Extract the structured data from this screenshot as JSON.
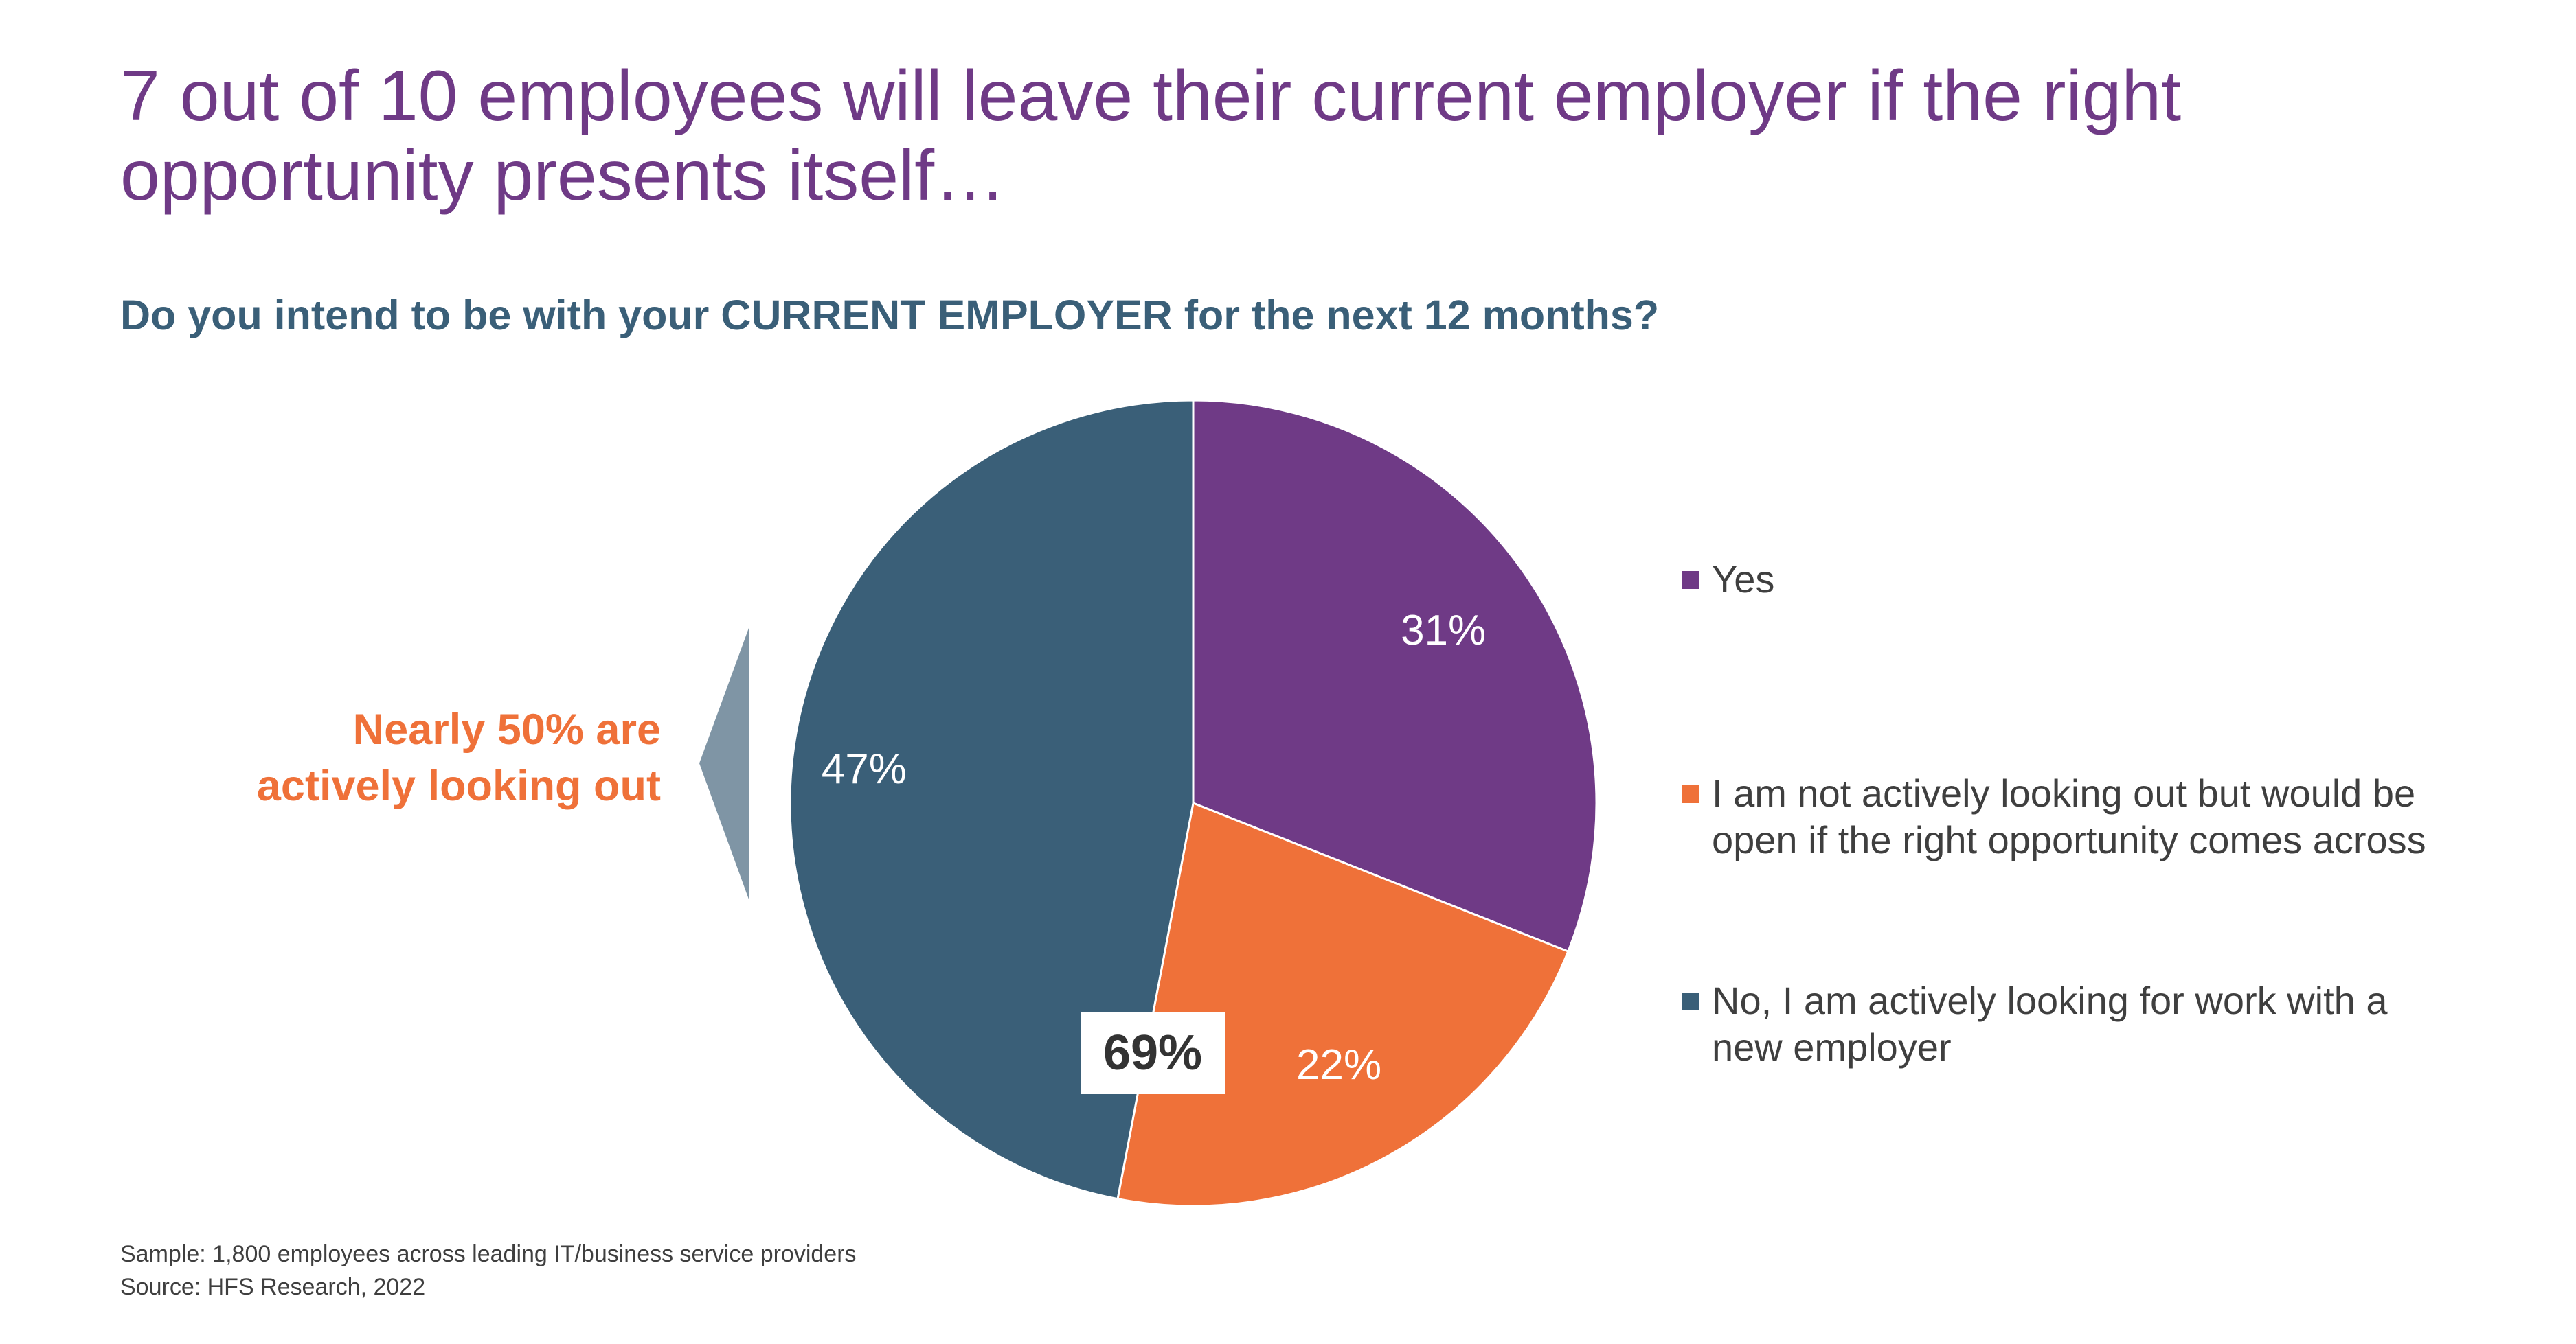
{
  "title": "7 out of 10 employees will leave their current employer if the right opportunity presents itself…",
  "subtitle": "Do you intend to be with your CURRENT EMPLOYER for the next 12 months?",
  "callout": {
    "line1": "Nearly 50% are",
    "line2": "actively looking out",
    "arrow_color": "#7f95a5"
  },
  "combined_label": "69%",
  "chart_data": {
    "type": "pie",
    "title": "Do you intend to be with your CURRENT EMPLOYER for the next 12 months?",
    "slices": [
      {
        "label": "Yes",
        "value": 31,
        "display": "31%",
        "color": "#6f3a86"
      },
      {
        "label": "I am not actively looking out but would be open if the right opportunity comes across",
        "value": 22,
        "display": "22%",
        "color": "#ef7139"
      },
      {
        "label": "No, I am actively looking for work with a new employer",
        "value": 47,
        "display": "47%",
        "color": "#3a5f78"
      }
    ],
    "legend_position": "right"
  },
  "legend": {
    "items": [
      {
        "line1": "Yes",
        "line2": ""
      },
      {
        "line1": "I am not actively looking out but would be",
        "line2": "open if the right opportunity comes across"
      },
      {
        "line1": "No, I am actively looking for work with a",
        "line2": "new employer"
      }
    ]
  },
  "footnotes": {
    "sample": "Sample:  1,800 employees across leading IT/business service providers",
    "source": "Source:  HFS Research, 2022"
  }
}
